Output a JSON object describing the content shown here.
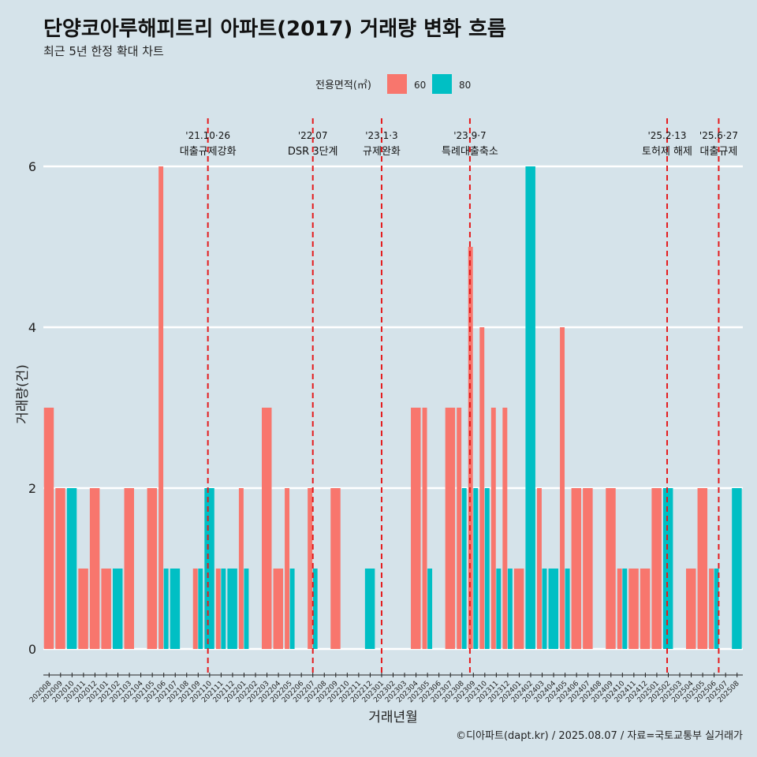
{
  "chart_data": {
    "type": "bar",
    "title": "단양코아루해피트리 아파트(2017) 거래량 변화 흐름",
    "subtitle": "최근 5년 한정 확대 차트",
    "xlabel": "거래년월",
    "ylabel": "거래량(건)",
    "ylim": [
      0,
      6
    ],
    "yticks": [
      0,
      2,
      4,
      6
    ],
    "legend": {
      "title": "전용면적(㎡)",
      "position": "top",
      "items": [
        {
          "name": "60",
          "color": "#f8766d"
        },
        {
          "name": "80",
          "color": "#00bfc4"
        }
      ]
    },
    "categories": [
      "202008",
      "202009",
      "202010",
      "202011",
      "202012",
      "202101",
      "202102",
      "202103",
      "202104",
      "202105",
      "202106",
      "202107",
      "202108",
      "202109",
      "202110",
      "202111",
      "202112",
      "202201",
      "202202",
      "202203",
      "202204",
      "202205",
      "202206",
      "202207",
      "202208",
      "202209",
      "202210",
      "202211",
      "202212",
      "202301",
      "202302",
      "202303",
      "202304",
      "202305",
      "202306",
      "202307",
      "202308",
      "202309",
      "202310",
      "202311",
      "202312",
      "202401",
      "202402",
      "202403",
      "202404",
      "202405",
      "202406",
      "202407",
      "202408",
      "202409",
      "202410",
      "202411",
      "202412",
      "202501",
      "202502",
      "202503",
      "202504",
      "202505",
      "202506",
      "202507",
      "202508"
    ],
    "series": [
      {
        "name": "60",
        "color": "#f8766d",
        "values": [
          3,
          2,
          0,
          1,
          2,
          1,
          0,
          2,
          0,
          2,
          6,
          0,
          0,
          1,
          0,
          1,
          0,
          2,
          0,
          3,
          1,
          2,
          0,
          2,
          0,
          2,
          0,
          0,
          0,
          0,
          0,
          0,
          3,
          3,
          0,
          3,
          3,
          5,
          4,
          3,
          3,
          1,
          0,
          2,
          0,
          4,
          2,
          2,
          0,
          2,
          1,
          1,
          1,
          2,
          0,
          0,
          1,
          2,
          1,
          0,
          0
        ],
        "hidden_note": ""
      },
      {
        "name": "80",
        "color": "#00bfc4",
        "values": [
          0,
          0,
          2,
          0,
          0,
          0,
          1,
          0,
          0,
          0,
          1,
          1,
          0,
          1,
          2,
          1,
          1,
          1,
          0,
          0,
          0,
          1,
          0,
          1,
          0,
          0,
          0,
          0,
          1,
          0,
          0,
          0,
          0,
          1,
          0,
          0,
          2,
          2,
          2,
          1,
          1,
          0,
          6,
          1,
          1,
          1,
          0,
          0,
          0,
          0,
          1,
          0,
          0,
          0,
          2,
          0,
          0,
          0,
          1,
          0,
          2
        ]
      }
    ],
    "annotations": [
      {
        "date": "'21.10·26",
        "label": "대출규제강화",
        "at": "202110",
        "offset": 0.35
      },
      {
        "date": "'22.07",
        "label": "DSR 3단계",
        "at": "202207",
        "offset": 0.0
      },
      {
        "date": "'23.1·3",
        "label": "규제완화",
        "at": "202301",
        "offset": 0.0
      },
      {
        "date": "'23.9·7",
        "label": "특례대출축소",
        "at": "202309",
        "offset": 0.2
      },
      {
        "date": "'25.2·13",
        "label": "토허제 해제",
        "at": "202502",
        "offset": 0.4
      },
      {
        "date": "'25.6·27",
        "label": "대출규제",
        "at": "202506",
        "offset": 0.9
      }
    ]
  },
  "caption": "©디아파트(dapt.kr) / 2025.08.07 / 자료=국토교통부 실거래가"
}
